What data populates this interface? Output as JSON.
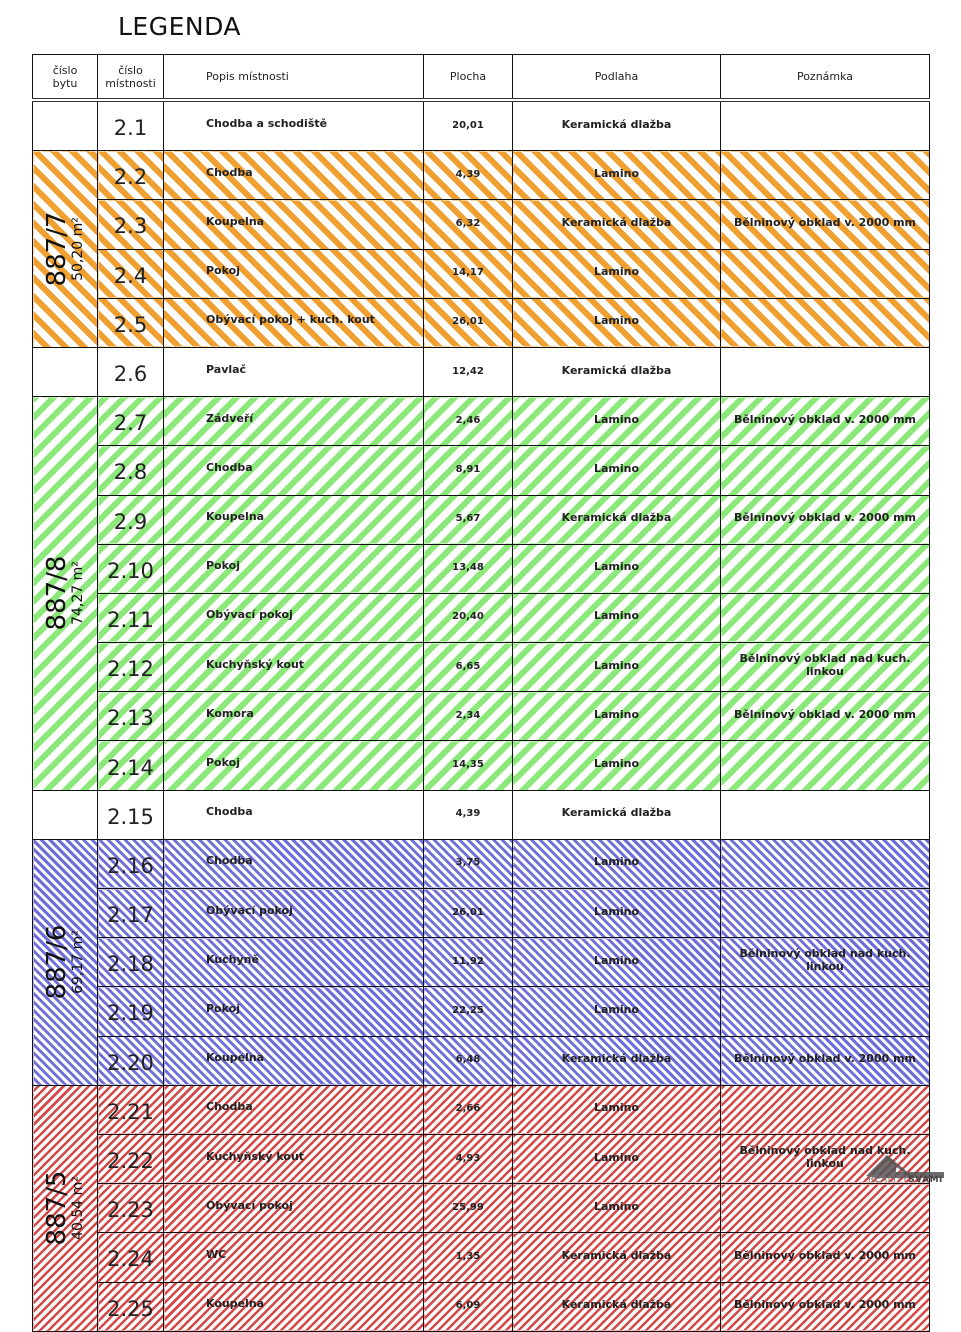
{
  "title": "LEGENDA",
  "headers": {
    "apartment_no": [
      "číslo",
      "bytu"
    ],
    "room_no": [
      "číslo",
      "místnosti"
    ],
    "description": "Popis místnosti",
    "area": "Plocha",
    "floor": "Podlaha",
    "note": "Poznámka"
  },
  "apartments": {
    "a7": {
      "id": "887/7",
      "area": "50,20 m²",
      "color": "#f0a030"
    },
    "a8": {
      "id": "887/8",
      "area": "74,27 m²",
      "color": "#8ce87a"
    },
    "a6": {
      "id": "887/6",
      "area": "69,17 m²",
      "color": "#6e6ed8"
    },
    "a5": {
      "id": "887/5",
      "area": "40,54 m²",
      "color": "#d44848"
    }
  },
  "rows": [
    {
      "no": "2.1",
      "desc": "Chodba a schodiště",
      "area": "20,01",
      "floor": "Keramická dlažba",
      "note": ""
    },
    {
      "no": "2.2",
      "desc": "Chodba",
      "area": "4,39",
      "floor": "Lamino",
      "note": ""
    },
    {
      "no": "2.3",
      "desc": "Koupelna",
      "area": "6,32",
      "floor": "Keramická dlažba",
      "note": "Bělninový obklad v. 2000 mm"
    },
    {
      "no": "2.4",
      "desc": "Pokoj",
      "area": "14,17",
      "floor": "Lamino",
      "note": ""
    },
    {
      "no": "2.5",
      "desc": "Obývací pokoj + kuch. kout",
      "area": "26,01",
      "floor": "Lamino",
      "note": ""
    },
    {
      "no": "2.6",
      "desc": "Pavlač",
      "area": "12,42",
      "floor": "Keramická dlažba",
      "note": ""
    },
    {
      "no": "2.7",
      "desc": "Zádveří",
      "area": "2,46",
      "floor": "Lamino",
      "note": "Bělninový obklad v. 2000 mm"
    },
    {
      "no": "2.8",
      "desc": "Chodba",
      "area": "8,91",
      "floor": "Lamino",
      "note": ""
    },
    {
      "no": "2.9",
      "desc": "Koupelna",
      "area": "5,67",
      "floor": "Keramická dlažba",
      "note": "Bělninový obklad v. 2000 mm"
    },
    {
      "no": "2.10",
      "desc": "Pokoj",
      "area": "13,48",
      "floor": "Lamino",
      "note": ""
    },
    {
      "no": "2.11",
      "desc": "Obývací pokoj",
      "area": "20,40",
      "floor": "Lamino",
      "note": ""
    },
    {
      "no": "2.12",
      "desc": "Kuchyňský kout",
      "area": "6,65",
      "floor": "Lamino",
      "note": "Bělninový obklad nad kuch. linkou"
    },
    {
      "no": "2.13",
      "desc": "Komora",
      "area": "2,34",
      "floor": "Lamino",
      "note": "Bělninový obklad v. 2000 mm"
    },
    {
      "no": "2.14",
      "desc": "Pokoj",
      "area": "14,35",
      "floor": "Lamino",
      "note": ""
    },
    {
      "no": "2.15",
      "desc": "Chodba",
      "area": "4,39",
      "floor": "Keramická dlažba",
      "note": ""
    },
    {
      "no": "2.16",
      "desc": "Chodba",
      "area": "3,75",
      "floor": "Lamino",
      "note": ""
    },
    {
      "no": "2.17",
      "desc": "Obývací pokoj",
      "area": "26,01",
      "floor": "Lamino",
      "note": ""
    },
    {
      "no": "2.18",
      "desc": "Kuchyně",
      "area": "11,92",
      "floor": "Lamino",
      "note": "Bělninový obklad nad kuch. linkou"
    },
    {
      "no": "2.19",
      "desc": "Pokoj",
      "area": "22,25",
      "floor": "Lamino",
      "note": ""
    },
    {
      "no": "2.20",
      "desc": "Koupelna",
      "area": "6,48",
      "floor": "Keramická dlažba",
      "note": "Bělninový obklad v. 2000 mm"
    },
    {
      "no": "2.21",
      "desc": "Chodba",
      "area": "2,66",
      "floor": "Lamino",
      "note": ""
    },
    {
      "no": "2.22",
      "desc": "Kuchyňský kout",
      "area": "4,93",
      "floor": "Lamino",
      "note": "Bělninový obklad nad kuch. linkou"
    },
    {
      "no": "2.23",
      "desc": "Obývací pokoj",
      "area": "25,99",
      "floor": "Lamino",
      "note": ""
    },
    {
      "no": "2.24",
      "desc": "WC",
      "area": "1,35",
      "floor": "Keramická dlažba",
      "note": "Bělninový obklad v. 2000 mm"
    },
    {
      "no": "2.25",
      "desc": "Koupelna",
      "area": "6,09",
      "floor": "Keramická dlažba",
      "note": "Bělninový obklad v. 2000 mm"
    }
  ],
  "watermark": {
    "text_light": "REALITY",
    "text_bold": "SVÁMI"
  }
}
